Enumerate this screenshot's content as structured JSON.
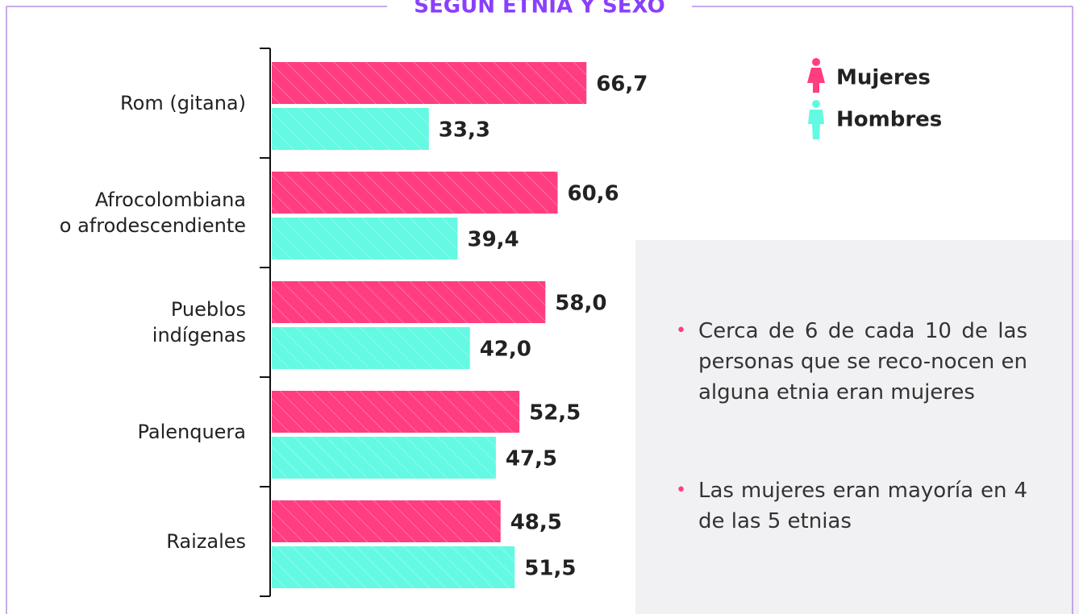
{
  "chart_data": {
    "type": "bar",
    "title": "SEGÚN ETNIA Y SEXO",
    "categories": [
      "Rom (gitana)",
      "Afrocolombiana\no afrodescendiente",
      "Pueblos\nindígenas",
      "Palenquera",
      "Raizales"
    ],
    "series": [
      {
        "name": "Mujeres",
        "color": "#ff3d80",
        "values": [
          66.7,
          60.6,
          58.0,
          52.5,
          48.5
        ],
        "value_labels": [
          "66,7",
          "60,6",
          "58,0",
          "52,5",
          "48,5"
        ]
      },
      {
        "name": "Hombres",
        "color": "#64f9e2",
        "values": [
          33.3,
          39.4,
          42.0,
          47.5,
          51.5
        ],
        "value_labels": [
          "33,3",
          "39,4",
          "42,0",
          "47,5",
          "51,5"
        ]
      }
    ],
    "annotations": [
      "Cerca de 6 de cada 10 de las personas que se reco-nocen en alguna etnia eran mujeres",
      "Las mujeres eran mayoría en 4 de las 5 etnias"
    ]
  }
}
